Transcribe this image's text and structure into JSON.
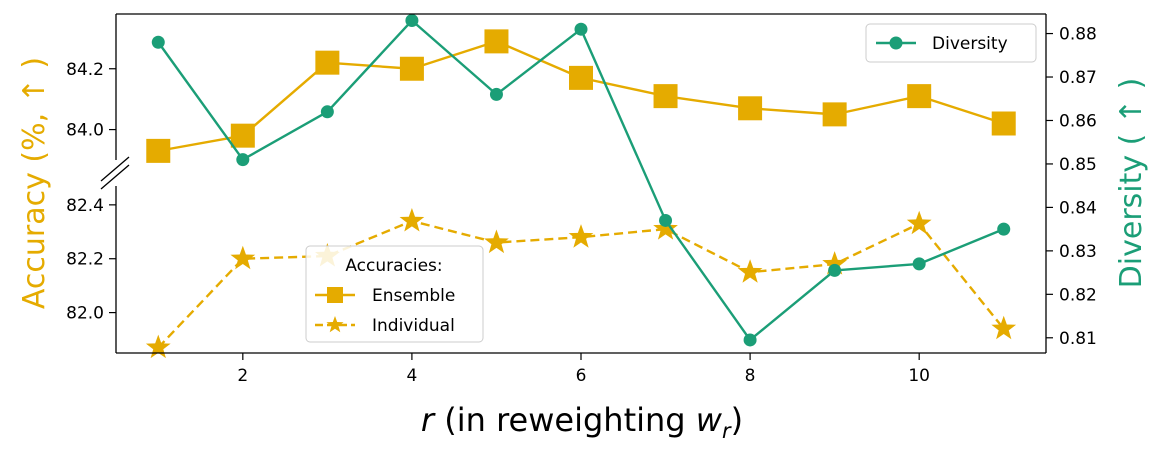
{
  "chart_data": {
    "type": "line",
    "xlabel": {
      "var": "r",
      "text": " (in reweighting ",
      "w": "w",
      "sub": "r",
      "close": ")"
    },
    "ylabel_left": "Accuracy (%, ↑ )",
    "ylabel_right": "Diversity ( ↑ )",
    "xlim": [
      0.5,
      11.5
    ],
    "xticks": [
      2,
      4,
      6,
      8,
      10
    ],
    "xtick_labels": [
      "2",
      "4",
      "6",
      "8",
      "10"
    ],
    "top_panel": {
      "ylim": [
        83.9,
        84.38
      ],
      "yticks": [
        84.0,
        84.2
      ],
      "ytick_labels": [
        "84.0",
        "84.2"
      ]
    },
    "bottom_panel": {
      "ylim": [
        81.85,
        82.47
      ],
      "yticks": [
        82.0,
        82.2,
        82.4
      ],
      "ytick_labels": [
        "82.0",
        "82.2",
        "82.4"
      ]
    },
    "right_axis": {
      "ylim": [
        0.8065,
        0.8845
      ],
      "yticks": [
        0.81,
        0.82,
        0.83,
        0.84,
        0.85,
        0.86,
        0.87,
        0.88
      ],
      "ytick_labels": [
        "0.81",
        "0.82",
        "0.83",
        "0.84",
        "0.85",
        "0.86",
        "0.87",
        "0.88"
      ]
    },
    "x": [
      1,
      2,
      3,
      4,
      5,
      6,
      7,
      8,
      9,
      10,
      11
    ],
    "series": [
      {
        "name": "Ensemble",
        "axis": "left-top",
        "color": "#e5ab00",
        "marker": "square",
        "linestyle": "solid",
        "values": [
          83.93,
          83.98,
          84.22,
          84.2,
          84.29,
          84.17,
          84.11,
          84.07,
          84.05,
          84.11,
          84.02
        ]
      },
      {
        "name": "Individual",
        "axis": "left-bottom",
        "color": "#e5ab00",
        "marker": "star",
        "linestyle": "dashed",
        "values": [
          81.87,
          82.2,
          82.21,
          82.34,
          82.26,
          82.28,
          82.31,
          82.15,
          82.18,
          82.33,
          81.94
        ]
      },
      {
        "name": "Diversity",
        "axis": "right",
        "color": "#1b9e77",
        "marker": "circle",
        "linestyle": "solid",
        "values": [
          0.878,
          0.851,
          0.862,
          0.883,
          0.866,
          0.881,
          0.837,
          0.8095,
          0.8255,
          0.827,
          0.835
        ]
      }
    ],
    "legend_accuracy": {
      "title": "Accuracies:",
      "entries": [
        "Ensemble",
        "Individual"
      ],
      "placement": "lower-left"
    },
    "legend_diversity": {
      "entries": [
        "Diversity"
      ],
      "placement": "top-right"
    }
  }
}
